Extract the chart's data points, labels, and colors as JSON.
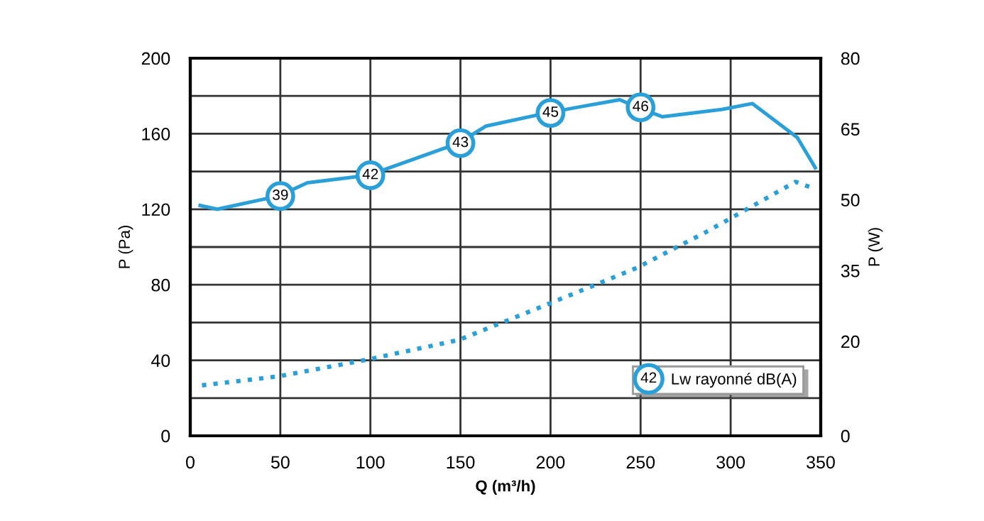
{
  "chart_data": {
    "type": "line",
    "xlabel": "Q (m³/h)",
    "ylabel": "P (Pa)",
    "y2label": "P (W)",
    "xlim": [
      0,
      350
    ],
    "xticks": [
      0,
      50,
      100,
      150,
      200,
      250,
      300,
      350
    ],
    "ylim": [
      0,
      200
    ],
    "yticks": [
      0,
      {
        "value": 20,
        "label": null
      },
      40,
      {
        "value": 60,
        "label": null
      },
      80,
      {
        "value": 100,
        "label": null
      },
      120,
      {
        "value": 140,
        "label": null
      },
      160,
      {
        "value": 180,
        "label": null
      },
      200
    ],
    "y2lim": [
      0,
      80
    ],
    "y2ticks": [
      0,
      20,
      35,
      50,
      65,
      80
    ],
    "grid": true,
    "legend": "bottom right",
    "series": [
      {
        "type": "line",
        "color": "#2b9fd8",
        "line_style": "solid",
        "x": [
          5.5,
          15,
          49,
          65,
          99,
          149,
          164,
          198,
          215,
          238.5,
          248,
          262,
          296,
          312,
          337,
          347
        ],
        "values": [
          122,
          120,
          127,
          134,
          138,
          155,
          164,
          171,
          174,
          178,
          174,
          169,
          173,
          176,
          158,
          142
        ]
      },
      {
        "type": "line",
        "color": "#2b9fd8",
        "line_style": "dotted",
        "axis": "y2",
        "x": [
          6.5,
          49,
          99,
          149,
          198,
          248,
          286,
          315,
          336,
          347
        ],
        "values": [
          10.7,
          12.6,
          16.2,
          20.3,
          27.8,
          35.6,
          43.1,
          49.3,
          53.8,
          52.3
        ]
      },
      {
        "type": "scatter",
        "name": "Lw rayonné dB(A)",
        "color": "#2b9fd8",
        "marker": "circle",
        "x": [
          50,
          100,
          150,
          200,
          250
        ],
        "values": [
          127,
          138,
          155,
          171,
          174
        ]
      }
    ],
    "annotations": [
      {
        "text": "39",
        "x": 50,
        "y": 127
      },
      {
        "text": "42",
        "x": 100,
        "y": 138
      },
      {
        "text": "43",
        "x": 150,
        "y": 155
      },
      {
        "text": "45",
        "x": 200,
        "y": 171
      },
      {
        "text": "46",
        "x": 250,
        "y": 174
      }
    ]
  }
}
